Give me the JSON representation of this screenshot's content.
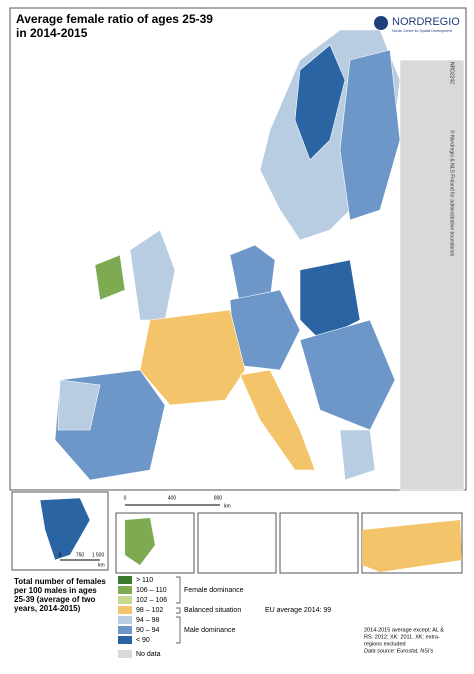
{
  "header": {
    "title_lines": [
      "Average female ratio of ages 25-39",
      "in 2014-2015"
    ],
    "logo": "NORDREGIO",
    "logo_sub": "Nordic Centre for Spatial Development",
    "map_id": "NRD2242",
    "copyright": "© Nordregio & NLS Finland for administrative boundaries"
  },
  "scale": {
    "labels": [
      "0",
      "400",
      "800"
    ],
    "unit": "km"
  },
  "greenland_scale": {
    "labels": [
      "0",
      "750",
      "1 500"
    ],
    "unit": "km"
  },
  "legend": {
    "title_lines": [
      "Total number of females",
      "per 100 males in ages",
      "25-39 (average of two",
      "years, 2014-2015)"
    ],
    "items": [
      {
        "label": "> 110",
        "color": "#3b7a2c"
      },
      {
        "label": "106 – 110",
        "color": "#7eaa52"
      },
      {
        "label": "102 – 106",
        "color": "#c7d98f"
      },
      {
        "label": "98 – 102",
        "color": "#f4c46a"
      },
      {
        "label": "94 – 98",
        "color": "#b8cce2"
      },
      {
        "label": "90 – 94",
        "color": "#6c97c8"
      },
      {
        "label": "< 90",
        "color": "#2a64a2"
      },
      {
        "label": "No data",
        "color": "#d9d9d9"
      }
    ],
    "groups": [
      "Female dominance",
      "Balanced situation",
      "Male dominance"
    ],
    "eu_average": "EU average 2014: 99"
  },
  "notes": [
    "2014-2015 average except: AL &",
    "RS: 2012; XK: 2011. XK: extra-",
    "regions excluded"
  ],
  "source": "Data source: Eurostat, NSI's"
}
